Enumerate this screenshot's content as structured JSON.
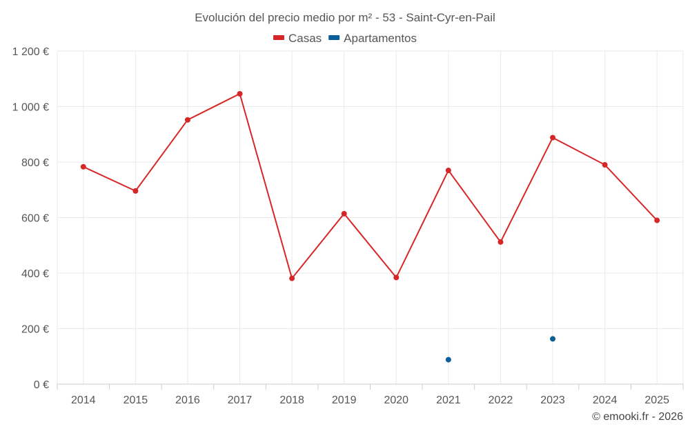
{
  "chart_data": {
    "type": "line",
    "title": "Evolución del precio medio por m² - 53 - Saint-Cyr-en-Pail",
    "categories": [
      "2014",
      "2015",
      "2016",
      "2017",
      "2018",
      "2019",
      "2020",
      "2021",
      "2022",
      "2023",
      "2024",
      "2025"
    ],
    "series": [
      {
        "name": "Casas",
        "color": "#d62728",
        "values": [
          783,
          696,
          952,
          1046,
          381,
          614,
          384,
          770,
          512,
          888,
          790,
          590
        ]
      },
      {
        "name": "Apartamentos",
        "color": "#0b5f99",
        "values": [
          null,
          null,
          null,
          null,
          null,
          null,
          null,
          88,
          null,
          163,
          null,
          null
        ]
      }
    ],
    "yticks": [
      0,
      200,
      400,
      600,
      800,
      1000,
      1200
    ],
    "ytick_labels": [
      "0 €",
      "200 €",
      "400 €",
      "600 €",
      "800 €",
      "1 000 €",
      "1 200 €"
    ],
    "ylim": [
      0,
      1200
    ],
    "legend_position": "top-center",
    "grid": true
  },
  "credit": "© emooki.fr - 2026"
}
